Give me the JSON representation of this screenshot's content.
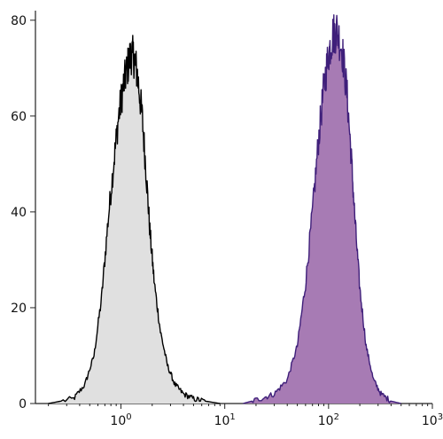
{
  "chart_data": {
    "type": "area",
    "title": "",
    "xlabel": "",
    "ylabel": "",
    "x_scale": "log",
    "xlim": [
      0.15,
      1000
    ],
    "ylim": [
      0,
      82
    ],
    "grid": false,
    "legend": "none",
    "y_ticks": [
      "0",
      "20",
      "40",
      "60",
      "80"
    ],
    "y_tick_values": [
      0,
      20,
      40,
      60,
      80
    ],
    "x_ticks": [
      {
        "value": 1,
        "base": "10",
        "exp": "0"
      },
      {
        "value": 10,
        "base": "10",
        "exp": "1"
      },
      {
        "value": 100,
        "base": "10",
        "exp": "2"
      },
      {
        "value": 1000,
        "base": "10",
        "exp": "3"
      }
    ],
    "series": [
      {
        "fill_color": "#e0e0e0",
        "line_color": "#000000",
        "x": [
          0.2,
          0.35,
          0.45,
          0.55,
          0.65,
          0.75,
          0.85,
          0.95,
          1.05,
          1.15,
          1.25,
          1.35,
          1.45,
          1.6,
          1.75,
          1.9,
          2.1,
          2.4,
          2.8,
          3.3,
          4.0,
          5.0,
          6.5,
          9.0
        ],
        "y": [
          0,
          1,
          4,
          10,
          22,
          38,
          50,
          60,
          66,
          70,
          73,
          72,
          68,
          60,
          48,
          36,
          25,
          15,
          8,
          4,
          2,
          1,
          0.5,
          0
        ]
      },
      {
        "fill_color": "#a77bb4",
        "line_color": "#3f1f7a",
        "x": [
          15,
          22,
          30,
          40,
          50,
          60,
          70,
          80,
          90,
          100,
          110,
          120,
          135,
          150,
          165,
          180,
          200,
          230,
          270,
          320,
          400,
          500
        ],
        "y": [
          0,
          1,
          2,
          5,
          12,
          25,
          40,
          55,
          66,
          73,
          77,
          78,
          74,
          65,
          52,
          38,
          24,
          12,
          5,
          2,
          0.5,
          0
        ]
      }
    ]
  }
}
